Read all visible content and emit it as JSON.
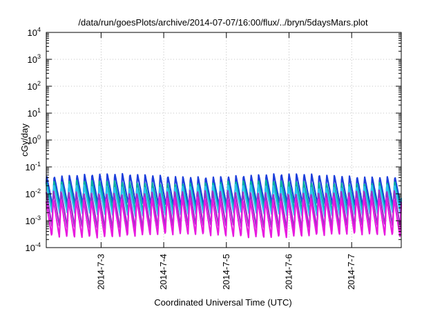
{
  "chart_data": {
    "type": "line",
    "title": "/data/run/goesPlots/archive/2014-07-07/16:00/flux/../bryn/5daysMars.plot",
    "xlabel": "Coordinated Universal Time (UTC)",
    "ylabel": "cGy/day",
    "yscale": "log",
    "ylim": [
      0.0001,
      10000
    ],
    "y_ticks": [
      {
        "base": "10",
        "exp": "-4",
        "value": 0.0001
      },
      {
        "base": "10",
        "exp": "-3",
        "value": 0.001
      },
      {
        "base": "10",
        "exp": "-2",
        "value": 0.01
      },
      {
        "base": "10",
        "exp": "-1",
        "value": 0.1
      },
      {
        "base": "10",
        "exp": "0",
        "value": 1
      },
      {
        "base": "10",
        "exp": "1",
        "value": 10
      },
      {
        "base": "10",
        "exp": "2",
        "value": 100
      },
      {
        "base": "10",
        "exp": "3",
        "value": 1000
      },
      {
        "base": "10",
        "exp": "4",
        "value": 10000
      }
    ],
    "xlim": [
      "2014-07-02 03:00",
      "2014-07-07 19:00"
    ],
    "x_ticks": [
      "2014-7-3",
      "2014-7-4",
      "2014-7-5",
      "2014-7-6",
      "2014-7-7"
    ],
    "grid": true,
    "oscillation_period_hours": 2.9,
    "series": [
      {
        "color": "#1c3fdc",
        "peak": 0.05,
        "trough": 0.0036
      },
      {
        "color": "#00b0a0",
        "peak": 0.028,
        "trough": 0.0022
      },
      {
        "color": "#2ec2f0",
        "peak": 0.02,
        "trough": 0.0016
      },
      {
        "color": "#9a30c8",
        "peak": 0.012,
        "trough": 0.00055
      },
      {
        "color": "#e81adf",
        "peak": 0.007,
        "trough": 0.00026
      }
    ]
  }
}
